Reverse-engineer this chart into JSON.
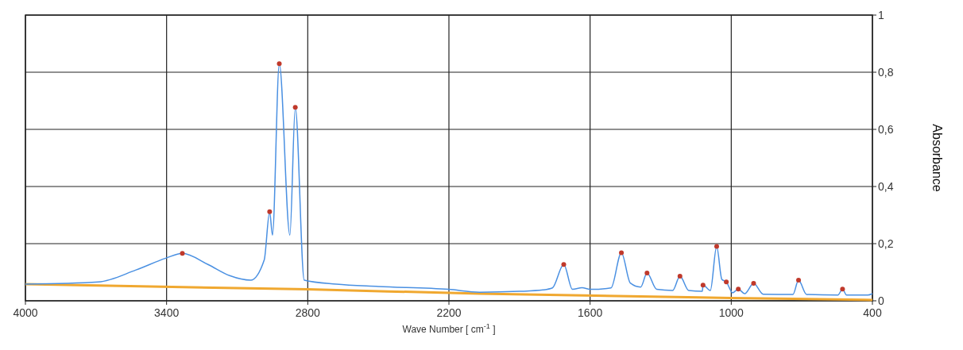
{
  "chart_data": {
    "type": "line",
    "xlabel": "Wave Number [ cm$^{-1}$ ]",
    "ylabel": "Absorbance",
    "xlim": [
      4000,
      400
    ],
    "ylim": [
      0,
      1
    ],
    "xticks": [
      4000,
      3400,
      2800,
      2200,
      1600,
      1000,
      400
    ],
    "yticks": [
      0,
      {
        "value": 0.2,
        "label": "0,2"
      },
      {
        "value": 0.4,
        "label": "0,4"
      },
      {
        "value": 0.6,
        "label": "0,6"
      },
      {
        "value": 0.8,
        "label": "0,8"
      },
      1
    ],
    "grid": true,
    "series": [
      {
        "color": "#f0a830",
        "x": [
          4000,
          2800,
          2070,
          1000,
          400
        ],
        "values": [
          0.058,
          0.04,
          0.025,
          0.01,
          0.003
        ]
      },
      {
        "color": "#4a90e2",
        "x": [
          4000,
          3690,
          3530,
          3404,
          3333,
          3224,
          3132,
          3043,
          2985,
          2962,
          2950,
          2921,
          2876,
          2853,
          2815,
          2679,
          2500,
          2200,
          2070,
          1900,
          1800,
          1760,
          1712,
          1675,
          1634,
          1600,
          1511,
          1467,
          1429,
          1385,
          1358,
          1317,
          1249,
          1218,
          1181,
          1123,
          1120,
          1089,
          1062,
          1040,
          1021,
          994,
          970,
          943,
          905,
          864,
          738,
          714,
          680,
          547,
          527,
          510,
          420,
          400
        ],
        "values": [
          0.058,
          0.066,
          0.108,
          0.149,
          0.166,
          0.127,
          0.088,
          0.072,
          0.143,
          0.312,
          0.23,
          0.83,
          0.23,
          0.677,
          0.072,
          0.058,
          0.05,
          0.04,
          0.03,
          0.033,
          0.038,
          0.045,
          0.127,
          0.04,
          0.046,
          0.04,
          0.045,
          0.168,
          0.062,
          0.048,
          0.097,
          0.04,
          0.036,
          0.086,
          0.036,
          0.033,
          0.055,
          0.036,
          0.19,
          0.075,
          0.066,
          0.028,
          0.041,
          0.025,
          0.061,
          0.023,
          0.022,
          0.072,
          0.022,
          0.02,
          0.041,
          0.02,
          0.02,
          0.025
        ]
      },
      {
        "type": "scatter",
        "color": "#c0392b",
        "marker": "circle",
        "x": [
          3333,
          2962,
          2921,
          2853,
          1712,
          1467,
          1358,
          1218,
          1120,
          1062,
          1021,
          970,
          905,
          714,
          527
        ],
        "values": [
          0.166,
          0.312,
          0.83,
          0.677,
          0.127,
          0.168,
          0.097,
          0.086,
          0.055,
          0.19,
          0.066,
          0.041,
          0.061,
          0.072,
          0.041
        ]
      }
    ]
  }
}
